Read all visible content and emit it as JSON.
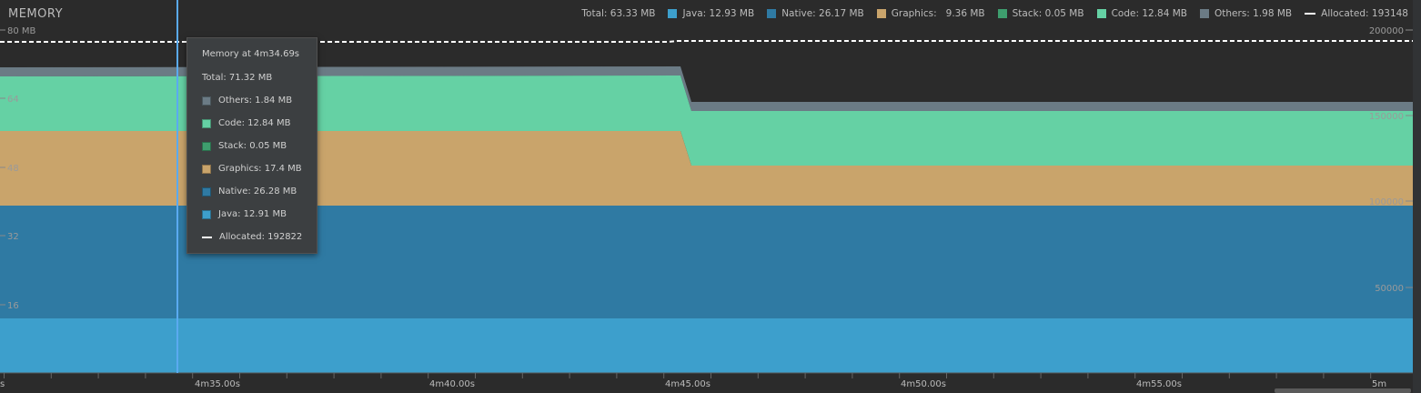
{
  "panel": {
    "title": "MEMORY"
  },
  "legend": {
    "total": "Total: 63.33 MB",
    "items": [
      {
        "label": "Java: 12.93 MB",
        "color": "#3d9fcc",
        "name": "legend-java"
      },
      {
        "label": "Native: 26.17 MB",
        "color": "#2f7aa3",
        "name": "legend-native"
      },
      {
        "label": "Graphics:   9.36 MB",
        "color": "#c9a46b",
        "name": "legend-graphics"
      },
      {
        "label": "Stack: 0.05 MB",
        "color": "#3e9e6e",
        "name": "legend-stack"
      },
      {
        "label": "Code: 12.84 MB",
        "color": "#65d1a4",
        "name": "legend-code"
      },
      {
        "label": "Others: 1.98 MB",
        "color": "#6b7b85",
        "name": "legend-others"
      }
    ],
    "allocated": "Allocated: 193148"
  },
  "axes": {
    "left_top_label": "80 MB",
    "left_ticks": [
      "64",
      "48",
      "32",
      "16"
    ],
    "right_top_label": "200000",
    "right_ticks": [
      "150000",
      "100000",
      "50000"
    ],
    "time_ticks": [
      "4m35.00s",
      "4m40.00s",
      "4m45.00s",
      "4m50.00s",
      "4m55.00s",
      "5m"
    ],
    "time_left_fragment": "s"
  },
  "tooltip": {
    "title": "Memory at 4m34.69s",
    "total": "Total: 71.32 MB",
    "rows": [
      {
        "label": "Others: 1.84 MB",
        "color": "#6b7b85"
      },
      {
        "label": "Code: 12.84 MB",
        "color": "#65d1a4"
      },
      {
        "label": "Stack: 0.05 MB",
        "color": "#3e9e6e"
      },
      {
        "label": "Graphics: 17.4 MB",
        "color": "#c9a46b"
      },
      {
        "label": "Native: 26.28 MB",
        "color": "#2f7aa3"
      },
      {
        "label": "Java: 12.91 MB",
        "color": "#3d9fcc"
      }
    ],
    "allocated": "Allocated: 192822"
  },
  "chart_data": {
    "type": "area",
    "title": "MEMORY",
    "xlabel": "",
    "ylabel": "",
    "ylim": [
      0,
      80
    ],
    "y2lim": [
      0,
      200000
    ],
    "x": [
      "4m35.00s",
      "4m40.00s",
      "4m45.00s",
      "4m50.00s",
      "4m55.00s",
      "5m"
    ],
    "series": [
      {
        "name": "Java",
        "values_mb_before_drop": 12.91,
        "values_mb_after_drop": 12.93
      },
      {
        "name": "Native",
        "values_mb_before_drop": 26.28,
        "values_mb_after_drop": 26.17
      },
      {
        "name": "Graphics",
        "values_mb_before_drop": 17.4,
        "values_mb_after_drop": 9.36
      },
      {
        "name": "Stack",
        "values_mb_before_drop": 0.05,
        "values_mb_after_drop": 0.05
      },
      {
        "name": "Code",
        "values_mb_before_drop": 12.84,
        "values_mb_after_drop": 12.84
      },
      {
        "name": "Others",
        "values_mb_before_drop": 1.84,
        "values_mb_after_drop": 1.98
      },
      {
        "name": "Allocated",
        "values_before_drop": 192822,
        "values_after_drop": 193148
      }
    ]
  }
}
